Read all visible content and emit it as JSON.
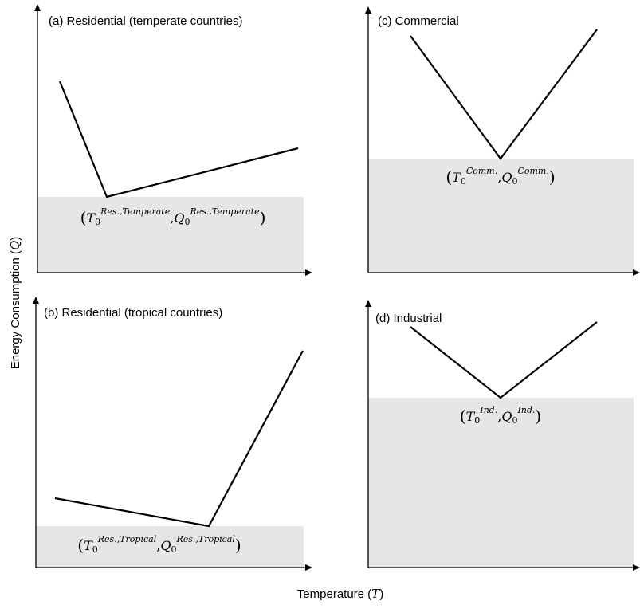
{
  "y_label": {
    "text": "Energy Consumption (",
    "symbol": "Q",
    "close": ")"
  },
  "x_label": {
    "text": "Temperature (",
    "symbol": "T",
    "close": ")"
  },
  "panels": [
    {
      "title": "(a) Residential (temperate countries)",
      "point_label": {
        "open": "(",
        "t": "T",
        "t_sub": "0",
        "t_sup": "Res.,Temperate",
        "sep": ",",
        "q": "Q",
        "q_sub": "0",
        "q_sup": "Res.,Temperate",
        "close": ")"
      }
    },
    {
      "title": "(c) Commercial",
      "point_label": {
        "open": "(",
        "t": "T",
        "t_sub": "0",
        "t_sup": "Comm.",
        "sep": ",",
        "q": "Q",
        "q_sub": "0",
        "q_sup": "Comm.",
        "close": ")"
      }
    },
    {
      "title": "(b) Residential (tropical countries)",
      "point_label": {
        "open": "(",
        "t": "T",
        "t_sub": "0",
        "t_sup": "Res.,Tropical",
        "sep": ",",
        "q": "Q",
        "q_sub": "0",
        "q_sup": "Res.,Tropical",
        "close": ")"
      }
    },
    {
      "title": "(d) Industrial",
      "point_label": {
        "open": "(",
        "t": "T",
        "t_sub": "0",
        "t_sup": "Ind.",
        "sep": ",",
        "q": "Q",
        "q_sub": "0",
        "q_sup": "Ind.",
        "close": ")"
      }
    }
  ]
}
